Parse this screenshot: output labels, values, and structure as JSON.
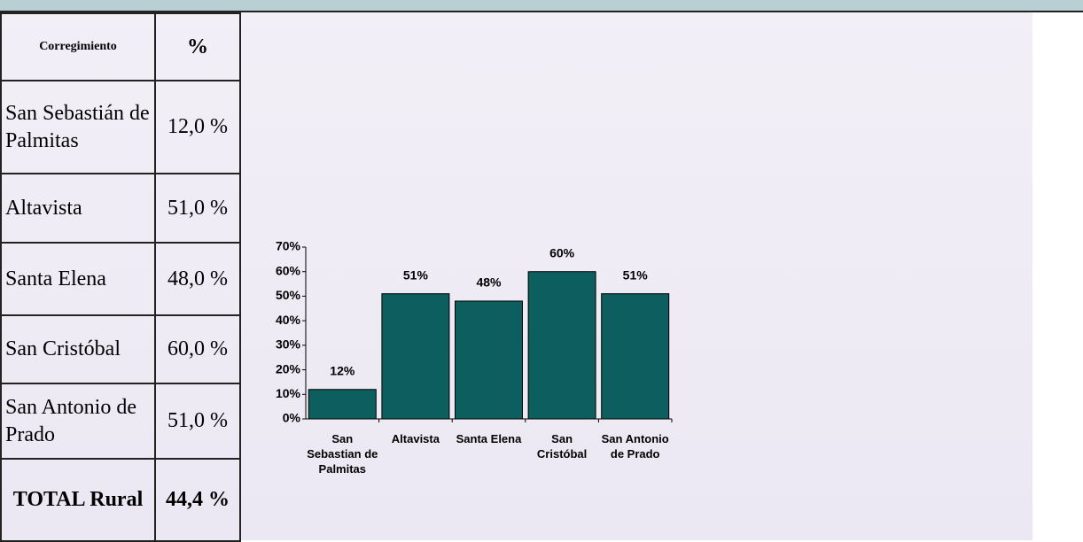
{
  "table": {
    "header": [
      "Corregimiento",
      "%"
    ],
    "rows": [
      [
        "San Sebastián de Palmitas",
        "12,0 %"
      ],
      [
        "Altavista",
        "51,0 %"
      ],
      [
        "Santa Elena",
        "48,0 %"
      ],
      [
        "San Cristóbal",
        "60,0 %"
      ],
      [
        "San Antonio de Prado",
        "51,0 %"
      ]
    ],
    "total": [
      "TOTAL Rural",
      "44,4 %"
    ]
  },
  "chart_data": {
    "type": "bar",
    "categories": [
      "San Sebastian de Palmitas",
      "Altavista",
      "Santa Elena",
      "San Cristóbal",
      "San Antonio de Prado"
    ],
    "values": [
      12,
      51,
      48,
      60,
      51
    ],
    "value_labels": [
      "12%",
      "51%",
      "48%",
      "60%",
      "51%"
    ],
    "color": "#0d5e5e",
    "ylim": [
      0,
      70
    ],
    "yticks": [
      {
        "value": 0,
        "label": "0%"
      },
      {
        "value": 10,
        "label": "10%"
      },
      {
        "value": 20,
        "label": "20%"
      },
      {
        "value": 30,
        "label": "30%"
      },
      {
        "value": 40,
        "label": "40%"
      },
      {
        "value": 50,
        "label": "50%"
      },
      {
        "value": 60,
        "label": "60%"
      },
      {
        "value": 70,
        "label": "70%"
      }
    ]
  }
}
